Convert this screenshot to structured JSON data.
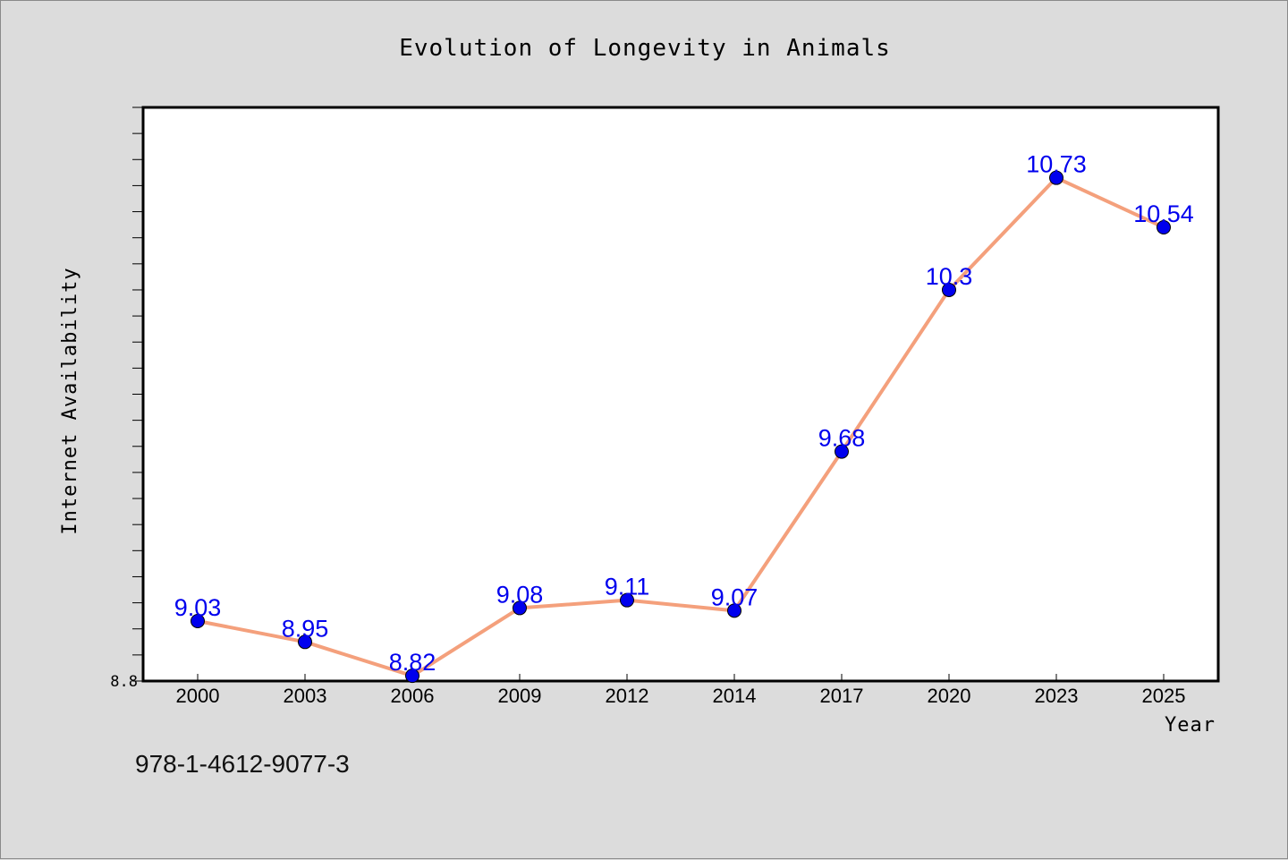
{
  "chart_data": {
    "type": "line",
    "title": "Evolution of Longevity in Animals",
    "xlabel": "Year",
    "ylabel": "Internet Availability",
    "categories": [
      "2000",
      "2003",
      "2006",
      "2009",
      "2012",
      "2014",
      "2017",
      "2020",
      "2023",
      "2025"
    ],
    "series": [
      {
        "values": [
          9.03,
          8.95,
          8.82,
          9.08,
          9.11,
          9.07,
          9.68,
          10.3,
          10.73,
          10.54
        ],
        "labels": [
          "9.03",
          "8.95",
          "8.82",
          "9.08",
          "9.11",
          "9.07",
          "9.68",
          "10.3",
          "10.73",
          "10.54"
        ],
        "line_color": "#f4a07c",
        "marker_color": "#0000ee",
        "label_color": "#0000ee"
      }
    ],
    "ylim": [
      8.8,
      11.0
    ],
    "yticks_labeled": [
      "8.8"
    ],
    "y_minor_tick_step": 0.1,
    "grid": false,
    "legend": "none"
  },
  "footer": {
    "code": "978-1-4612-9077-3"
  },
  "colors": {
    "background": "#dcdcdc",
    "plot_background": "#ffffff",
    "frame": "#000000"
  }
}
